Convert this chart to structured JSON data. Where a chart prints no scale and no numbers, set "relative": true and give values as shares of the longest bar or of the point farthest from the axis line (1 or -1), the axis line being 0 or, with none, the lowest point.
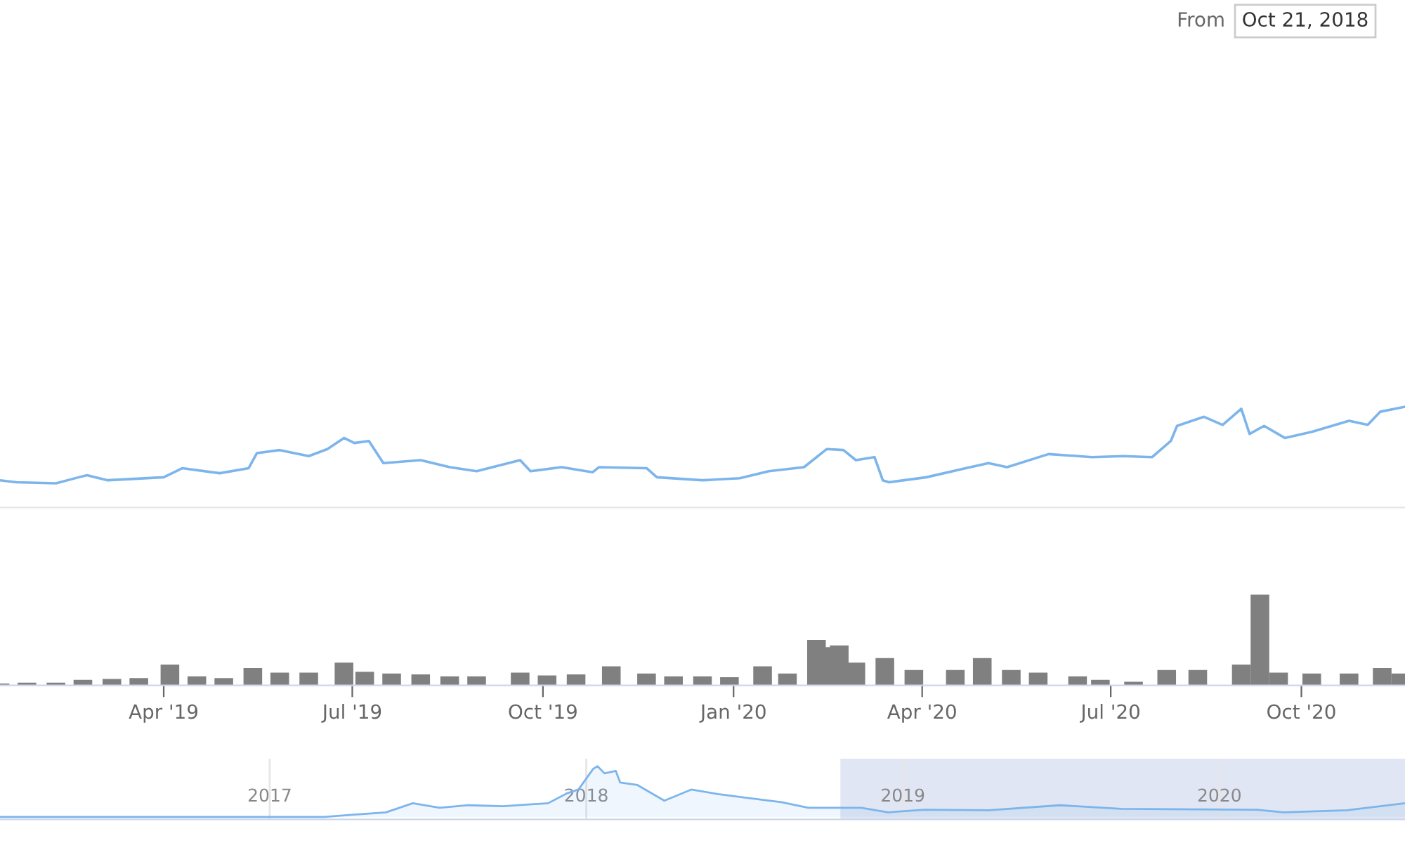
{
  "chart_data": [
    {
      "type": "line",
      "relative": true,
      "tick_labels": false,
      "xlim": [
        "2019-01-12",
        "2020-11-20"
      ],
      "annotations": [
        "From",
        "Oct 21, 2018"
      ],
      "x": [
        "2019-01-12",
        "2019-01-20",
        "2019-02-08",
        "2019-02-19",
        "2019-02-23",
        "2019-03-05",
        "2019-04-01",
        "2019-04-10",
        "2019-04-28",
        "2019-05-12",
        "2019-05-16",
        "2019-05-27",
        "2019-06-10",
        "2019-06-19",
        "2019-06-27",
        "2019-07-02",
        "2019-07-09",
        "2019-07-16",
        "2019-08-03",
        "2019-08-17",
        "2019-08-30",
        "2019-09-20",
        "2019-09-25",
        "2019-10-10",
        "2019-10-25",
        "2019-10-28",
        "2019-11-20",
        "2019-11-25",
        "2019-12-17",
        "2020-01-04",
        "2020-01-18",
        "2020-02-04",
        "2020-02-15",
        "2020-02-23",
        "2020-02-29",
        "2020-03-09",
        "2020-03-13",
        "2020-03-16",
        "2020-04-03",
        "2020-04-22",
        "2020-05-03",
        "2020-05-12",
        "2020-06-01",
        "2020-06-22",
        "2020-07-07",
        "2020-07-21",
        "2020-07-30",
        "2020-08-02",
        "2020-08-15",
        "2020-08-24",
        "2020-09-02",
        "2020-09-06",
        "2020-09-13",
        "2020-09-23",
        "2020-10-06",
        "2020-10-24",
        "2020-11-02",
        "2020-11-08",
        "2020-11-20"
      ],
      "series": [
        {
          "color": "#7cb5ec",
          "values": [
            0.27,
            0.25,
            0.24,
            0.3,
            0.32,
            0.27,
            0.3,
            0.39,
            0.34,
            0.39,
            0.54,
            0.57,
            0.51,
            0.58,
            0.69,
            0.64,
            0.66,
            0.44,
            0.47,
            0.4,
            0.36,
            0.47,
            0.36,
            0.4,
            0.35,
            0.4,
            0.39,
            0.3,
            0.27,
            0.29,
            0.36,
            0.4,
            0.58,
            0.57,
            0.47,
            0.5,
            0.27,
            0.25,
            0.3,
            0.39,
            0.44,
            0.4,
            0.53,
            0.5,
            0.51,
            0.5,
            0.66,
            0.81,
            0.9,
            0.82,
            0.98,
            0.73,
            0.81,
            0.69,
            0.75,
            0.86,
            0.82,
            0.95,
            1
          ]
        }
      ]
    },
    {
      "type": "bar",
      "relative": true,
      "tick_labels": "x",
      "xlim": [
        "2019-01-12",
        "2020-11-20"
      ],
      "xticks": [
        {
          "value": "2019-04-01",
          "label": "Apr '19"
        },
        {
          "value": "2019-07-01",
          "label": "Jul '19"
        },
        {
          "value": "2019-10-01",
          "label": "Oct '19"
        },
        {
          "value": "2020-01-01",
          "label": "Jan '20"
        },
        {
          "value": "2020-04-01",
          "label": "Apr '20"
        },
        {
          "value": "2020-07-01",
          "label": "Jul '20"
        },
        {
          "value": "2020-10-01",
          "label": "Oct '20"
        }
      ],
      "x": [
        "2019-01-12",
        "2019-01-25",
        "2019-02-08",
        "2019-02-21",
        "2019-03-07",
        "2019-03-20",
        "2019-04-04",
        "2019-04-17",
        "2019-04-30",
        "2019-05-14",
        "2019-05-27",
        "2019-06-10",
        "2019-06-27",
        "2019-07-07",
        "2019-07-20",
        "2019-08-03",
        "2019-08-17",
        "2019-08-30",
        "2019-09-20",
        "2019-10-03",
        "2019-10-17",
        "2019-11-03",
        "2019-11-20",
        "2019-12-03",
        "2019-12-17",
        "2019-12-30",
        "2020-01-15",
        "2020-01-27",
        "2020-02-10",
        "2020-02-16",
        "2020-02-21",
        "2020-02-29",
        "2020-03-14",
        "2020-03-28",
        "2020-04-17",
        "2020-04-30",
        "2020-05-14",
        "2020-05-27",
        "2020-06-15",
        "2020-06-26",
        "2020-07-12",
        "2020-07-28",
        "2020-08-12",
        "2020-09-02",
        "2020-09-11",
        "2020-09-20",
        "2020-10-06",
        "2020-10-24",
        "2020-11-09",
        "2020-11-18"
      ],
      "series": [
        {
          "color": "#808080",
          "values": [
            0.02,
            0.03,
            0.03,
            0.06,
            0.07,
            0.08,
            0.23,
            0.1,
            0.08,
            0.19,
            0.14,
            0.14,
            0.25,
            0.15,
            0.13,
            0.12,
            0.1,
            0.1,
            0.14,
            0.11,
            0.12,
            0.21,
            0.13,
            0.1,
            0.1,
            0.09,
            0.21,
            0.13,
            0.5,
            0.42,
            0.44,
            0.25,
            0.3,
            0.17,
            0.17,
            0.3,
            0.17,
            0.14,
            0.1,
            0.06,
            0.04,
            0.17,
            0.17,
            0.23,
            1,
            0.14,
            0.13,
            0.13,
            0.19,
            0.13
          ]
        }
      ]
    },
    {
      "type": "area",
      "relative": true,
      "tick_labels": "x",
      "grid": "x",
      "xlim": [
        "2016-02-25",
        "2020-08-02"
      ],
      "xticks": [
        {
          "value": "2017-01-01",
          "label": "2017"
        },
        {
          "value": "2018-01-01",
          "label": "2018"
        },
        {
          "value": "2019-01-01",
          "label": "2019"
        },
        {
          "value": "2020-01-01",
          "label": "2020"
        }
      ],
      "bands": [
        {
          "axis": "x",
          "from": "2018-10-21",
          "to": "2020-08-02",
          "color": "#ccd6eb"
        }
      ],
      "x": [
        "2016-02-25",
        "2017-03-05",
        "2017-05-15",
        "2017-06-15",
        "2017-07-16",
        "2017-08-18",
        "2017-09-27",
        "2017-11-18",
        "2017-12-09",
        "2017-12-23",
        "2018-01-09",
        "2018-01-14",
        "2018-01-22",
        "2018-02-04",
        "2018-02-09",
        "2018-03-01",
        "2018-04-01",
        "2018-05-02",
        "2018-06-02",
        "2018-07-03",
        "2018-08-14",
        "2018-09-14",
        "2018-11-14",
        "2018-12-15",
        "2019-01-26",
        "2019-04-10",
        "2019-07-01",
        "2019-09-10",
        "2020-02-13",
        "2020-03-15",
        "2020-05-27",
        "2020-08-02"
      ],
      "series": [
        {
          "color": "#7cb5ec",
          "values": [
            0,
            0,
            0.09,
            0.27,
            0.18,
            0.23,
            0.21,
            0.27,
            0.46,
            0.54,
            0.95,
            1,
            0.86,
            0.91,
            0.68,
            0.63,
            0.32,
            0.54,
            0.45,
            0.38,
            0.29,
            0.18,
            0.18,
            0.09,
            0.14,
            0.13,
            0.23,
            0.16,
            0.14,
            0.09,
            0.13,
            0.27
          ]
        }
      ]
    }
  ]
}
